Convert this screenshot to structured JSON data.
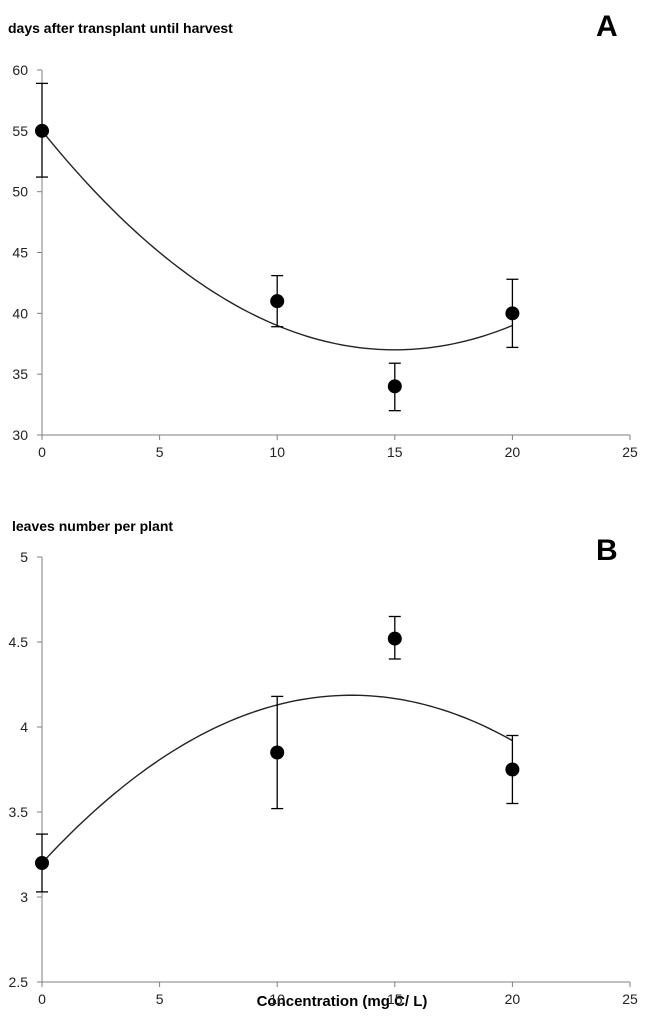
{
  "chart_data": [
    {
      "type": "scatter",
      "panel_letter": "A",
      "title": "days after transplant until harvest",
      "xlabel": "",
      "ylabel": "",
      "xlim": [
        0,
        25
      ],
      "ylim": [
        30,
        60
      ],
      "x_ticks": [
        0,
        5,
        10,
        15,
        20,
        25
      ],
      "y_ticks": [
        30,
        35,
        40,
        45,
        50,
        55,
        60
      ],
      "grid": false,
      "series": [
        {
          "x": [
            0,
            10,
            15,
            20
          ],
          "y": [
            55,
            41,
            34,
            40
          ],
          "error_low": [
            51.2,
            38.9,
            32.0,
            37.2
          ],
          "error_high": [
            58.9,
            43.1,
            35.9,
            42.8
          ]
        }
      ],
      "fit": {
        "kind": "quadratic",
        "x_range": [
          0,
          20
        ],
        "coefficients": [
          55.0,
          -2.4,
          0.08
        ]
      }
    },
    {
      "type": "scatter",
      "panel_letter": "B",
      "title": "leaves number per plant",
      "xlabel": "Concentration (mg C/ L)",
      "ylabel": "",
      "xlim": [
        0,
        25
      ],
      "ylim": [
        2.5,
        5
      ],
      "x_ticks": [
        0,
        5,
        10,
        15,
        20,
        25
      ],
      "y_ticks": [
        2.5,
        3,
        3.5,
        4,
        4.5,
        5
      ],
      "grid": false,
      "series": [
        {
          "x": [
            0,
            10,
            15,
            20
          ],
          "y": [
            3.2,
            3.85,
            4.52,
            3.75
          ],
          "error_low": [
            3.03,
            3.52,
            4.4,
            3.55
          ],
          "error_high": [
            3.37,
            4.18,
            4.65,
            3.95
          ]
        }
      ],
      "fit": {
        "kind": "quadratic",
        "x_range": [
          0,
          20
        ],
        "coefficients": [
          3.2,
          0.15,
          -0.0057
        ]
      }
    }
  ]
}
